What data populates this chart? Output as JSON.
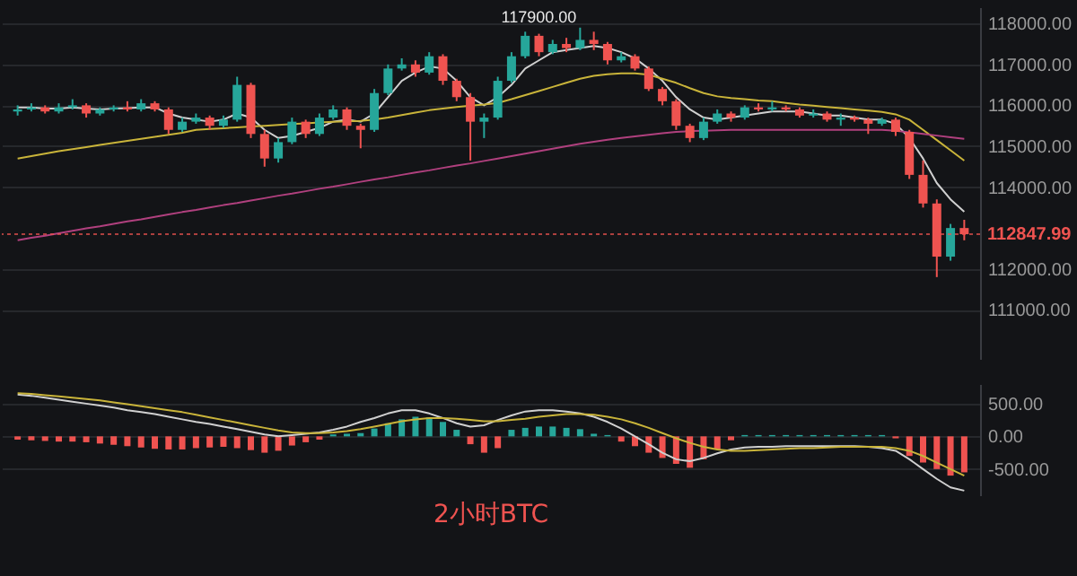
{
  "chart_data": [
    {
      "type": "candlestick",
      "categories": [
        null,
        null,
        null,
        null,
        null,
        null,
        null,
        null,
        null,
        null,
        null,
        null,
        null,
        null,
        null,
        null,
        null,
        null,
        null,
        null,
        null,
        null,
        null,
        null,
        null,
        null,
        null,
        null,
        null,
        null,
        null,
        null,
        null,
        null,
        null,
        null,
        null,
        null,
        null,
        null,
        null,
        null,
        null,
        null,
        null,
        null,
        null,
        null,
        null,
        null,
        null,
        null,
        null,
        null,
        null,
        null,
        null,
        null,
        null,
        null,
        null,
        null,
        null,
        null,
        null,
        null,
        null,
        null,
        null,
        null
      ],
      "ohlc": [
        [
          115850,
          116000,
          115750,
          115900
        ],
        [
          115900,
          116050,
          115850,
          115950
        ],
        [
          115950,
          116000,
          115800,
          115850
        ],
        [
          115850,
          116050,
          115800,
          115950
        ],
        [
          115950,
          116150,
          115900,
          116000
        ],
        [
          116000,
          116050,
          115700,
          115800
        ],
        [
          115800,
          115950,
          115750,
          115900
        ],
        [
          115900,
          116000,
          115850,
          115950
        ],
        [
          115950,
          116100,
          115850,
          115900
        ],
        [
          115900,
          116150,
          115850,
          116050
        ],
        [
          116050,
          116100,
          115850,
          115900
        ],
        [
          115900,
          115950,
          115300,
          115400
        ],
        [
          115400,
          115700,
          115350,
          115600
        ],
        [
          115600,
          115800,
          115550,
          115700
        ],
        [
          115700,
          115750,
          115400,
          115500
        ],
        [
          115500,
          115750,
          115450,
          115650
        ],
        [
          115650,
          116700,
          115600,
          116500
        ],
        [
          116500,
          116550,
          115200,
          115300
        ],
        [
          115300,
          115400,
          114500,
          114700
        ],
        [
          114700,
          115200,
          114600,
          115100
        ],
        [
          115100,
          115700,
          115050,
          115600
        ],
        [
          115600,
          115650,
          115200,
          115300
        ],
        [
          115300,
          115800,
          115250,
          115700
        ],
        [
          115700,
          116000,
          115650,
          115900
        ],
        [
          115900,
          115950,
          115400,
          115500
        ],
        [
          115500,
          115550,
          114950,
          115400
        ],
        [
          115400,
          116400,
          115350,
          116300
        ],
        [
          116300,
          117000,
          116250,
          116900
        ],
        [
          116900,
          117150,
          116850,
          117000
        ],
        [
          117000,
          117100,
          116700,
          116800
        ],
        [
          116800,
          117300,
          116750,
          117200
        ],
        [
          117200,
          117250,
          116500,
          116600
        ],
        [
          116600,
          116650,
          116100,
          116200
        ],
        [
          116200,
          116300,
          114650,
          115600
        ],
        [
          115600,
          115800,
          115200,
          115700
        ],
        [
          115700,
          116700,
          115650,
          116600
        ],
        [
          116600,
          117300,
          116550,
          117200
        ],
        [
          117200,
          117800,
          117150,
          117700
        ],
        [
          117700,
          117750,
          117200,
          117300
        ],
        [
          117300,
          117600,
          117250,
          117500
        ],
        [
          117500,
          117650,
          117300,
          117400
        ],
        [
          117400,
          117900,
          117350,
          117600
        ],
        [
          117600,
          117800,
          117350,
          117500
        ],
        [
          117500,
          117550,
          117000,
          117100
        ],
        [
          117100,
          117300,
          117050,
          117200
        ],
        [
          117200,
          117250,
          116850,
          116900
        ],
        [
          116900,
          116950,
          116350,
          116400
        ],
        [
          116400,
          116450,
          116000,
          116100
        ],
        [
          116100,
          116150,
          115400,
          115500
        ],
        [
          115500,
          115550,
          115100,
          115200
        ],
        [
          115200,
          115700,
          115150,
          115600
        ],
        [
          115600,
          115900,
          115550,
          115800
        ],
        [
          115800,
          115850,
          115600,
          115700
        ],
        [
          115700,
          116000,
          115650,
          115950
        ],
        [
          115950,
          116050,
          115850,
          115900
        ],
        [
          115900,
          116100,
          115850,
          115950
        ],
        [
          115950,
          116000,
          115850,
          115900
        ],
        [
          115900,
          115950,
          115700,
          115750
        ],
        [
          115750,
          115900,
          115700,
          115800
        ],
        [
          115800,
          115850,
          115600,
          115650
        ],
        [
          115650,
          115800,
          115500,
          115700
        ],
        [
          115700,
          115750,
          115600,
          115650
        ],
        [
          115650,
          115700,
          115300,
          115550
        ],
        [
          115550,
          115700,
          115500,
          115650
        ],
        [
          115650,
          115700,
          115250,
          115350
        ],
        [
          115350,
          115400,
          114200,
          114300
        ],
        [
          114300,
          114650,
          113500,
          113600
        ],
        [
          113600,
          113700,
          111800,
          112300
        ],
        [
          112300,
          113100,
          112200,
          113000
        ],
        [
          113000,
          113200,
          112700,
          112847.99
        ]
      ],
      "colors": [
        "#26a69a",
        "#26a69a",
        "#ef5350",
        "#26a69a",
        "#26a69a",
        "#ef5350",
        "#26a69a",
        "#26a69a",
        "#ef5350",
        "#26a69a",
        "#ef5350",
        "#ef5350",
        "#26a69a",
        "#26a69a",
        "#ef5350",
        "#26a69a",
        "#26a69a",
        "#ef5350",
        "#ef5350",
        "#26a69a",
        "#26a69a",
        "#ef5350",
        "#26a69a",
        "#26a69a",
        "#ef5350",
        "#ef5350",
        "#26a69a",
        "#26a69a",
        "#26a69a",
        "#ef5350",
        "#26a69a",
        "#ef5350",
        "#ef5350",
        "#ef5350",
        "#26a69a",
        "#26a69a",
        "#26a69a",
        "#26a69a",
        "#ef5350",
        "#26a69a",
        "#ef5350",
        "#26a69a",
        "#ef5350",
        "#ef5350",
        "#26a69a",
        "#ef5350",
        "#ef5350",
        "#ef5350",
        "#ef5350",
        "#ef5350",
        "#26a69a",
        "#26a69a",
        "#ef5350",
        "#26a69a",
        "#ef5350",
        "#26a69a",
        "#ef5350",
        "#ef5350",
        "#26a69a",
        "#ef5350",
        "#26a69a",
        "#ef5350",
        "#ef5350",
        "#26a69a",
        "#ef5350",
        "#ef5350",
        "#ef5350",
        "#ef5350",
        "#26a69a",
        "#ef5350"
      ],
      "series": [
        {
          "type": "line",
          "color": "#d0d0d0",
          "values": [
            115950,
            115950,
            115920,
            115920,
            115950,
            115920,
            115900,
            115920,
            115930,
            115950,
            115950,
            115800,
            115700,
            115650,
            115600,
            115650,
            115800,
            115700,
            115400,
            115200,
            115250,
            115350,
            115450,
            115600,
            115650,
            115600,
            115800,
            116200,
            116600,
            116800,
            116950,
            116900,
            116600,
            116200,
            116000,
            116200,
            116500,
            116900,
            117100,
            117300,
            117350,
            117400,
            117450,
            117400,
            117300,
            117150,
            116900,
            116600,
            116200,
            115900,
            115700,
            115650,
            115700,
            115750,
            115800,
            115850,
            115850,
            115850,
            115800,
            115750,
            115750,
            115700,
            115650,
            115650,
            115550,
            115200,
            114700,
            114100,
            113700,
            113400
          ]
        },
        {
          "type": "line",
          "color": "#c9b43a",
          "values": [
            114700,
            114760,
            114820,
            114880,
            114930,
            114980,
            115030,
            115080,
            115130,
            115180,
            115230,
            115280,
            115330,
            115400,
            115420,
            115440,
            115460,
            115480,
            115500,
            115520,
            115540,
            115560,
            115580,
            115600,
            115610,
            115620,
            115650,
            115700,
            115760,
            115820,
            115880,
            115920,
            115960,
            115990,
            116020,
            116060,
            116150,
            116250,
            116350,
            116450,
            116550,
            116650,
            116720,
            116760,
            116780,
            116780,
            116750,
            116650,
            116550,
            116420,
            116300,
            116220,
            116180,
            116150,
            116120,
            116100,
            116060,
            116020,
            115990,
            115960,
            115930,
            115900,
            115870,
            115840,
            115780,
            115650,
            115400,
            115150,
            114900,
            114650
          ]
        },
        {
          "type": "line",
          "color": "#b0407e",
          "values": [
            112700,
            112760,
            112810,
            112870,
            112930,
            112990,
            113040,
            113100,
            113160,
            113210,
            113270,
            113330,
            113390,
            113440,
            113500,
            113560,
            113610,
            113670,
            113730,
            113790,
            113840,
            113900,
            113960,
            114010,
            114070,
            114130,
            114190,
            114240,
            114300,
            114360,
            114410,
            114470,
            114530,
            114580,
            114640,
            114700,
            114760,
            114820,
            114880,
            114940,
            115000,
            115060,
            115110,
            115160,
            115200,
            115240,
            115280,
            115320,
            115350,
            115370,
            115380,
            115390,
            115400,
            115400,
            115400,
            115400,
            115400,
            115400,
            115400,
            115400,
            115400,
            115400,
            115400,
            115400,
            115380,
            115340,
            115300,
            115260,
            115220,
            115180
          ]
        }
      ],
      "ylim": [
        109800,
        118400
      ],
      "yticks": [
        {
          "value": 111000,
          "label": "111000.00"
        },
        {
          "value": 112000,
          "label": "112000.00"
        },
        {
          "value": 114000,
          "label": "114000.00"
        },
        {
          "value": 115000,
          "label": "115000.00"
        },
        {
          "value": 116000,
          "label": "116000.00"
        },
        {
          "value": 117000,
          "label": "117000.00"
        },
        {
          "value": 118000,
          "label": "118000.00"
        }
      ],
      "ref_lines": [
        {
          "axis": "y",
          "value": 112847.99,
          "label": "112847.99",
          "color": "#ef5350",
          "line_style": "dotted"
        }
      ],
      "annotations": [
        {
          "text": "117900.00",
          "y": 117900
        }
      ],
      "grid": "y"
    },
    {
      "type": "bar",
      "title": "2小时BTC",
      "categories": [
        null,
        null,
        null,
        null,
        null,
        null,
        null,
        null,
        null,
        null,
        null,
        null,
        null,
        null,
        null,
        null,
        null,
        null,
        null,
        null,
        null,
        null,
        null,
        null,
        null,
        null,
        null,
        null,
        null,
        null,
        null,
        null,
        null,
        null,
        null,
        null,
        null,
        null,
        null,
        null,
        null,
        null,
        null,
        null,
        null,
        null,
        null,
        null,
        null,
        null,
        null,
        null,
        null,
        null,
        null,
        null,
        null,
        null,
        null,
        null,
        null,
        null,
        null,
        null,
        null,
        null,
        null,
        null,
        null,
        null
      ],
      "series": [
        {
          "type": "bar",
          "values": [
            -50,
            -60,
            -70,
            -80,
            -80,
            -90,
            -110,
            -130,
            -150,
            -170,
            -190,
            -200,
            -200,
            -180,
            -170,
            -160,
            -180,
            -210,
            -250,
            -220,
            -140,
            -90,
            -50,
            30,
            40,
            50,
            120,
            200,
            260,
            300,
            290,
            220,
            100,
            -120,
            -250,
            -180,
            100,
            130,
            150,
            150,
            130,
            110,
            40,
            20,
            -80,
            -150,
            -250,
            -330,
            -420,
            -480,
            -350,
            -200,
            -60,
            20,
            20,
            20,
            20,
            20,
            20,
            20,
            20,
            20,
            20,
            20,
            -30,
            -300,
            -400,
            -500,
            -600,
            -550
          ],
          "colors": [
            "#ef5350",
            "#ef5350",
            "#ef5350",
            "#ef5350",
            "#ef5350",
            "#ef5350",
            "#ef5350",
            "#ef5350",
            "#ef5350",
            "#ef5350",
            "#ef5350",
            "#ef5350",
            "#ef5350",
            "#ef5350",
            "#ef5350",
            "#ef5350",
            "#ef5350",
            "#ef5350",
            "#ef5350",
            "#ef5350",
            "#ef5350",
            "#ef5350",
            "#ef5350",
            "#26a69a",
            "#26a69a",
            "#26a69a",
            "#26a69a",
            "#26a69a",
            "#26a69a",
            "#26a69a",
            "#26a69a",
            "#26a69a",
            "#26a69a",
            "#ef5350",
            "#ef5350",
            "#ef5350",
            "#26a69a",
            "#26a69a",
            "#26a69a",
            "#26a69a",
            "#26a69a",
            "#26a69a",
            "#26a69a",
            "#26a69a",
            "#ef5350",
            "#ef5350",
            "#ef5350",
            "#ef5350",
            "#ef5350",
            "#ef5350",
            "#ef5350",
            "#ef5350",
            "#ef5350",
            "#26a69a",
            "#26a69a",
            "#26a69a",
            "#26a69a",
            "#26a69a",
            "#26a69a",
            "#26a69a",
            "#26a69a",
            "#26a69a",
            "#26a69a",
            "#26a69a",
            "#ef5350",
            "#ef5350",
            "#ef5350",
            "#ef5350",
            "#ef5350",
            "#ef5350"
          ]
        },
        {
          "type": "line",
          "color": "#d0d0d0",
          "values": [
            640,
            620,
            590,
            560,
            530,
            500,
            470,
            440,
            400,
            370,
            340,
            300,
            260,
            220,
            190,
            150,
            110,
            70,
            30,
            0,
            20,
            40,
            60,
            100,
            150,
            220,
            280,
            350,
            400,
            400,
            350,
            280,
            200,
            150,
            170,
            250,
            320,
            380,
            400,
            400,
            380,
            350,
            300,
            220,
            120,
            0,
            -120,
            -250,
            -350,
            -380,
            -330,
            -260,
            -200,
            -170,
            -160,
            -160,
            -150,
            -150,
            -150,
            -150,
            -150,
            -150,
            -160,
            -180,
            -220,
            -350,
            -500,
            -650,
            -780,
            -830
          ]
        },
        {
          "type": "line",
          "color": "#c9b43a",
          "values": [
            660,
            650,
            630,
            610,
            590,
            570,
            550,
            520,
            490,
            460,
            430,
            400,
            370,
            330,
            290,
            250,
            210,
            170,
            130,
            90,
            60,
            50,
            50,
            60,
            80,
            110,
            150,
            190,
            230,
            260,
            280,
            280,
            270,
            250,
            230,
            230,
            250,
            270,
            300,
            320,
            340,
            340,
            330,
            300,
            260,
            200,
            130,
            50,
            -30,
            -100,
            -160,
            -200,
            -220,
            -220,
            -210,
            -200,
            -190,
            -180,
            -180,
            -170,
            -160,
            -160,
            -160,
            -160,
            -180,
            -220,
            -300,
            -400,
            -500,
            -600
          ]
        }
      ],
      "ylim": [
        -900,
        800
      ],
      "yticks": [
        {
          "value": 500,
          "label": "500.00"
        },
        {
          "value": 0,
          "label": "0.00"
        },
        {
          "value": -500,
          "label": "-500.00"
        }
      ],
      "grid": "y"
    }
  ]
}
